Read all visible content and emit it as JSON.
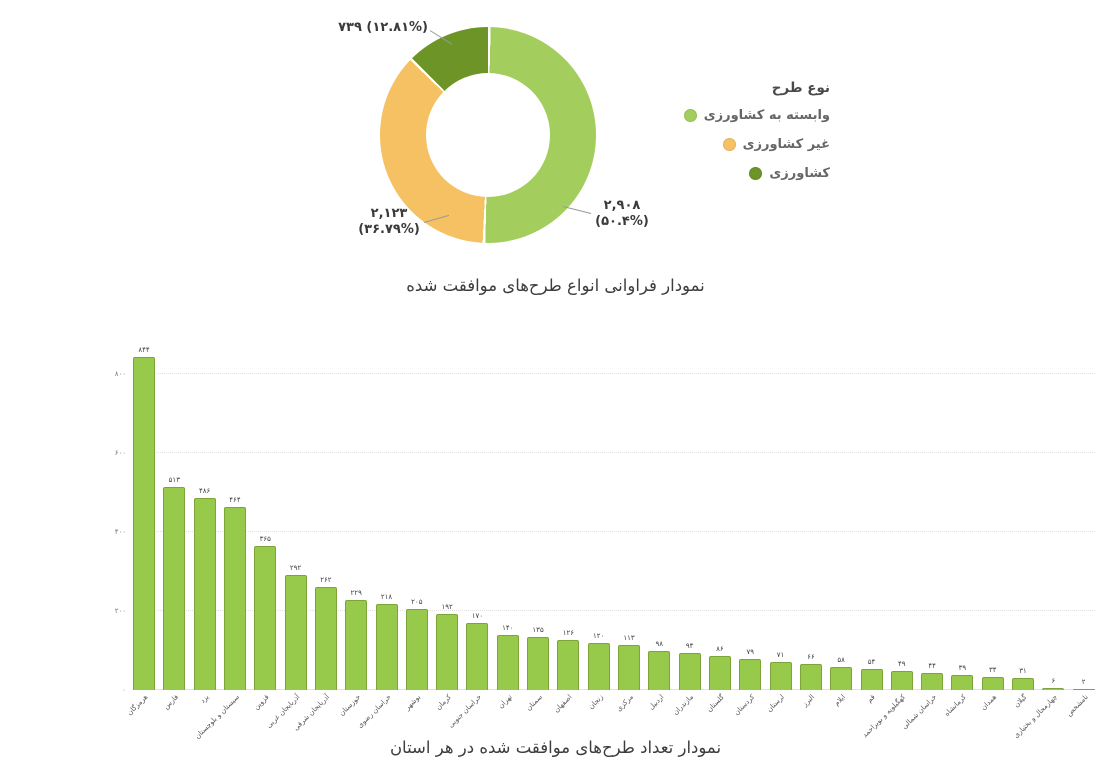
{
  "titles": {
    "pie_title": "نمودار فراوانی انواع طرح‌های موافقت شده",
    "bar_title": "نمودار تعداد طرح‌های موافقت شده در هر استان"
  },
  "legend": {
    "title": "نوع طرح",
    "items": [
      {
        "label": "وابسته به کشاورزی",
        "color": "#a3ce5d"
      },
      {
        "label": "غیر کشاورزی",
        "color": "#f6c163"
      },
      {
        "label": "کشاورزی",
        "color": "#6d9427"
      }
    ]
  },
  "donut_labels": {
    "agriculture": "۷۳۹ (۱۲.۸۱%)",
    "agri_dependent_value": "۲,۹۰۸",
    "agri_dependent_pct": "(۵۰.۴%)",
    "non_agriculture_value": "۲,۱۲۳",
    "non_agriculture_pct": "(۳۶.۷۹%)"
  },
  "colors": {
    "light_green": "#a3ce5d",
    "orange": "#f6c163",
    "dark_green": "#6d9427",
    "bar_fill": "#97c94a",
    "bar_border": "#7ca439"
  },
  "chart_data": [
    {
      "type": "pie",
      "donut": true,
      "title": "نمودار فراوانی انواع طرح‌های موافقت شده",
      "legend_title": "نوع طرح",
      "legend_position": "right",
      "slices": [
        {
          "label": "وابسته به کشاورزی",
          "value": 2908,
          "pct": 50.4,
          "color": "#a3ce5d",
          "data_label": "۲,۹۰۸ (۵۰.۴%)"
        },
        {
          "label": "غیر کشاورزی",
          "value": 2123,
          "pct": 36.79,
          "color": "#f6c163",
          "data_label": "۲,۱۲۳ (۳۶.۷۹%)"
        },
        {
          "label": "کشاورزی",
          "value": 739,
          "pct": 12.81,
          "color": "#6d9427",
          "data_label": "۷۳۹ (۱۲.۸۱%)"
        }
      ]
    },
    {
      "type": "bar",
      "title": "نمودار تعداد طرح‌های موافقت شده در هر استان",
      "xlabel": "",
      "ylabel": "",
      "ylim": [
        0,
        800
      ],
      "grid": true,
      "yticks": [
        {
          "value": 0,
          "label": "۰"
        },
        {
          "value": 200,
          "label": "۲۰۰"
        },
        {
          "value": 400,
          "label": "۴۰۰"
        },
        {
          "value": 600,
          "label": "۶۰۰"
        },
        {
          "value": 800,
          "label": "۸۰۰"
        }
      ],
      "categories": [
        "هرمزگان",
        "فارس",
        "یزد",
        "سیستان و بلوچستان",
        "قزوین",
        "آذربایجان غربی",
        "آذربایجان شرقی",
        "خوزستان",
        "خراسان رضوی",
        "بوشهر",
        "کرمان",
        "خراسان جنوبی",
        "تهران",
        "سمنان",
        "اصفهان",
        "زنجان",
        "مرکزی",
        "اردبیل",
        "مازندران",
        "گلستان",
        "کردستان",
        "لرستان",
        "البرز",
        "ایلام",
        "قم",
        "کهگیلویه و بویراحمد",
        "خراسان شمالی",
        "کرمانشاه",
        "همدان",
        "گیلان",
        "چهارمحال و بختیاری",
        "نامشخص"
      ],
      "values": [
        844,
        513,
        486,
        464,
        365,
        292,
        262,
        229,
        218,
        205,
        192,
        170,
        140,
        135,
        126,
        120,
        113,
        98,
        94,
        86,
        79,
        71,
        66,
        58,
        54,
        49,
        44,
        39,
        34,
        31,
        6,
        2
      ],
      "value_labels": [
        "۸۴۴",
        "۵۱۳",
        "۴۸۶",
        "۴۶۴",
        "۳۶۵",
        "۲۹۲",
        "۲۶۲",
        "۲۲۹",
        "۲۱۸",
        "۲۰۵",
        "۱۹۲",
        "۱۷۰",
        "۱۴۰",
        "۱۳۵",
        "۱۲۶",
        "۱۲۰",
        "۱۱۳",
        "۹۸",
        "۹۴",
        "۸۶",
        "۷۹",
        "۷۱",
        "۶۶",
        "۵۸",
        "۵۴",
        "۴۹",
        "۴۴",
        "۳۹",
        "۳۴",
        "۳۱",
        "۶",
        "۲"
      ]
    }
  ]
}
